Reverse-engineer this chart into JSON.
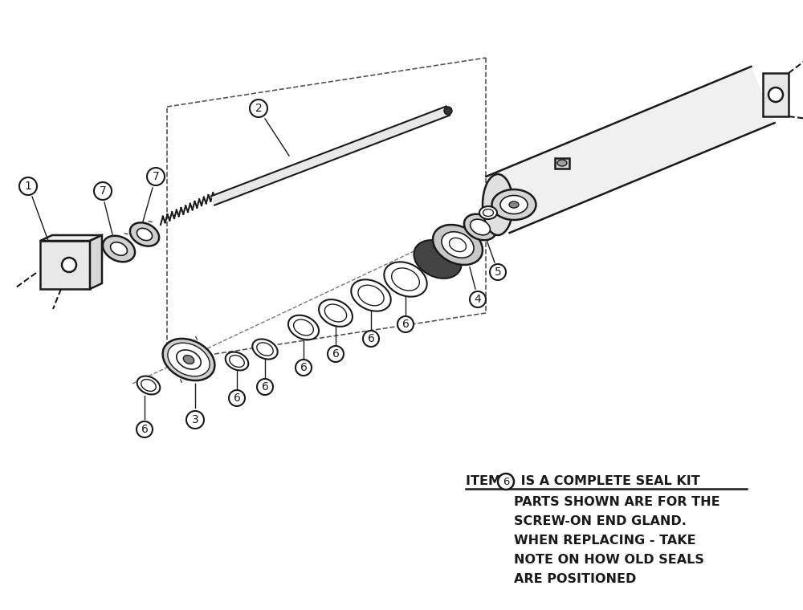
{
  "bg_color": "#ffffff",
  "line_color": "#1a1a1a",
  "figsize": [
    10.0,
    7.6
  ],
  "dpi": 100,
  "annotation_lines": [
    "PARTS SHOWN ARE FOR THE",
    "SCREW-ON END GLAND.",
    "WHEN REPLACING - TAKE",
    "NOTE ON HOW OLD SEALS",
    "ARE POSITIONED"
  ]
}
